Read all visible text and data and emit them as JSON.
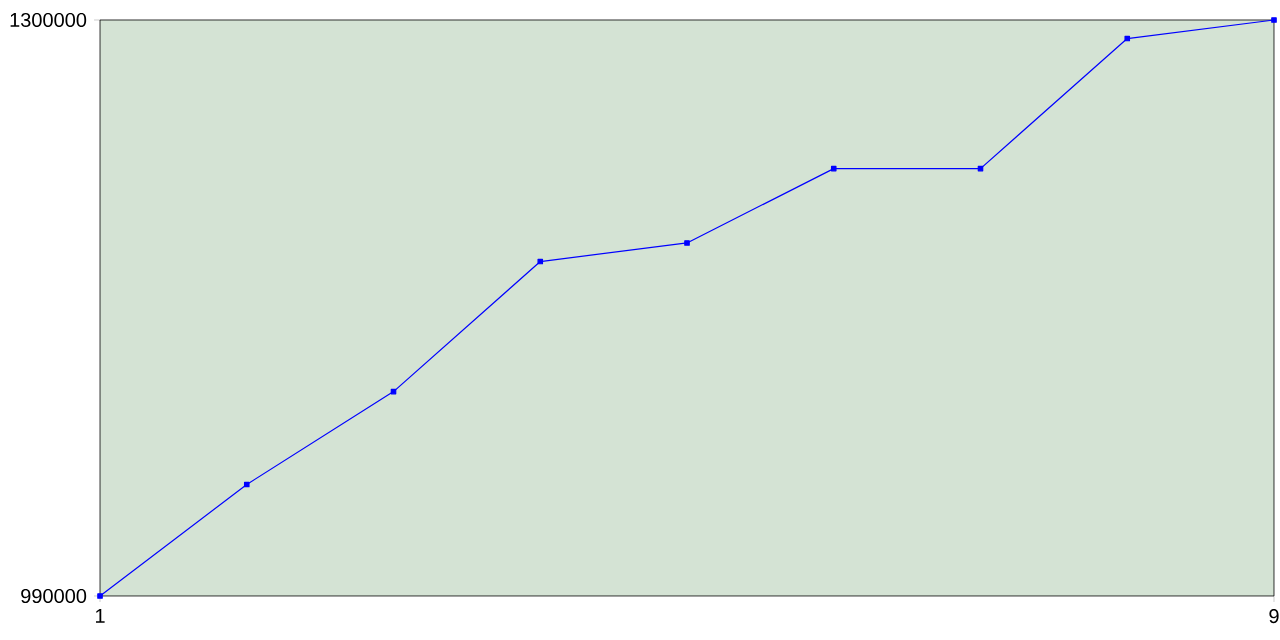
{
  "chart_data": {
    "type": "line",
    "x": [
      1,
      2,
      3,
      4,
      5,
      6,
      7,
      8,
      9
    ],
    "series": [
      {
        "color": "#0000ff",
        "values": [
          990000,
          1050000,
          1100000,
          1170000,
          1180000,
          1220000,
          1220000,
          1290000,
          1300000
        ]
      }
    ],
    "xlim": [
      1,
      9
    ],
    "xticks": [
      1,
      9
    ],
    "ylim": [
      990000,
      1300000
    ],
    "yticks": [
      990000,
      1300000
    ],
    "marker": "square",
    "grid": false
  }
}
